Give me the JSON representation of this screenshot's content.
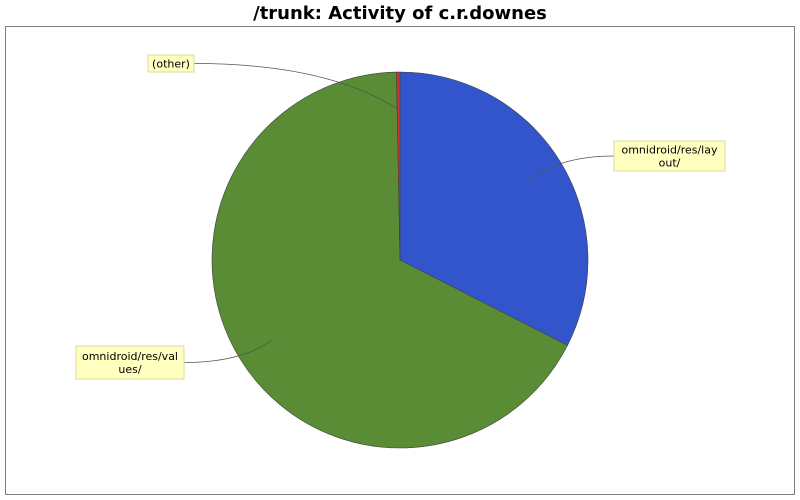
{
  "chart_data": {
    "type": "pie",
    "title": "/trunk: Activity of c.r.downes",
    "slices": [
      {
        "label": "omnidroid/res/layout/",
        "label_lines": [
          "omnidroid/res/lay",
          "out/"
        ],
        "value": 32.5,
        "color": "#3355cc"
      },
      {
        "label": "omnidroid/res/values/",
        "label_lines": [
          "omnidroid/res/val",
          "ues/"
        ],
        "value": 67.2,
        "color": "#5a8c35"
      },
      {
        "label": "(other)",
        "label_lines": [
          "(other)"
        ],
        "value": 0.3,
        "color": "#cc3333"
      }
    ]
  }
}
